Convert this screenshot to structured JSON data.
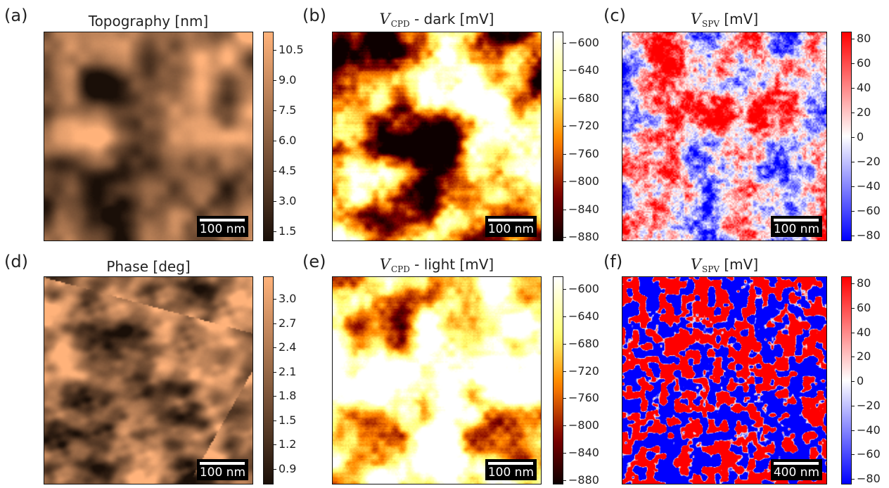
{
  "panels": {
    "a": {
      "label": "(a)",
      "title": "Topography [nm]",
      "scale": "100 nm",
      "colorbar": {
        "ticks": [
          "10.5",
          "9.0",
          "7.5",
          "6.0",
          "4.5",
          "3.0",
          "1.5"
        ]
      },
      "cmap": "copper"
    },
    "b": {
      "label": "(b)",
      "title_v": "V",
      "title_sub": "CPD",
      "title_rest": " - dark [mV]",
      "scale": "100 nm",
      "colorbar": {
        "ticks": [
          "−600",
          "−640",
          "−680",
          "−720",
          "−760",
          "−800",
          "−840",
          "−880"
        ]
      },
      "cmap": "afmhot"
    },
    "c": {
      "label": "(c)",
      "title_v": "V",
      "title_sub": "SPV",
      "title_rest": " [mV]",
      "scale": "100 nm",
      "colorbar": {
        "ticks": [
          "80",
          "60",
          "40",
          "20",
          "0",
          "−20",
          "−40",
          "−60",
          "−80"
        ]
      },
      "cmap": "bwr"
    },
    "d": {
      "label": "(d)",
      "title": "Phase [deg]",
      "scale": "100 nm",
      "colorbar": {
        "ticks": [
          "3.0",
          "2.7",
          "2.4",
          "2.1",
          "1.8",
          "1.5",
          "1.2",
          "0.9"
        ]
      },
      "cmap": "copper"
    },
    "e": {
      "label": "(e)",
      "title_v": "V",
      "title_sub": "CPD",
      "title_rest": " - light [mV]",
      "scale": "100 nm",
      "colorbar": {
        "ticks": [
          "−600",
          "−640",
          "−680",
          "−720",
          "−760",
          "−800",
          "−840",
          "−880"
        ]
      },
      "cmap": "afmhot"
    },
    "f": {
      "label": "(f)",
      "title_v": "V",
      "title_sub": "SPV",
      "title_rest": " [mV]",
      "scale": "400 nm",
      "colorbar": {
        "ticks": [
          "80",
          "60",
          "40",
          "20",
          "0",
          "−20",
          "−40",
          "−60",
          "−80"
        ]
      },
      "cmap": "bwr"
    }
  },
  "colors": {
    "copper_dark": "#1a0f08",
    "copper_light": "#f5b27a",
    "afmhot_dark": "#2a0800",
    "afmhot_light": "#fffbe8",
    "bwr_blue": "#0000ff",
    "bwr_white": "#ffffff",
    "bwr_red": "#ff0000"
  }
}
